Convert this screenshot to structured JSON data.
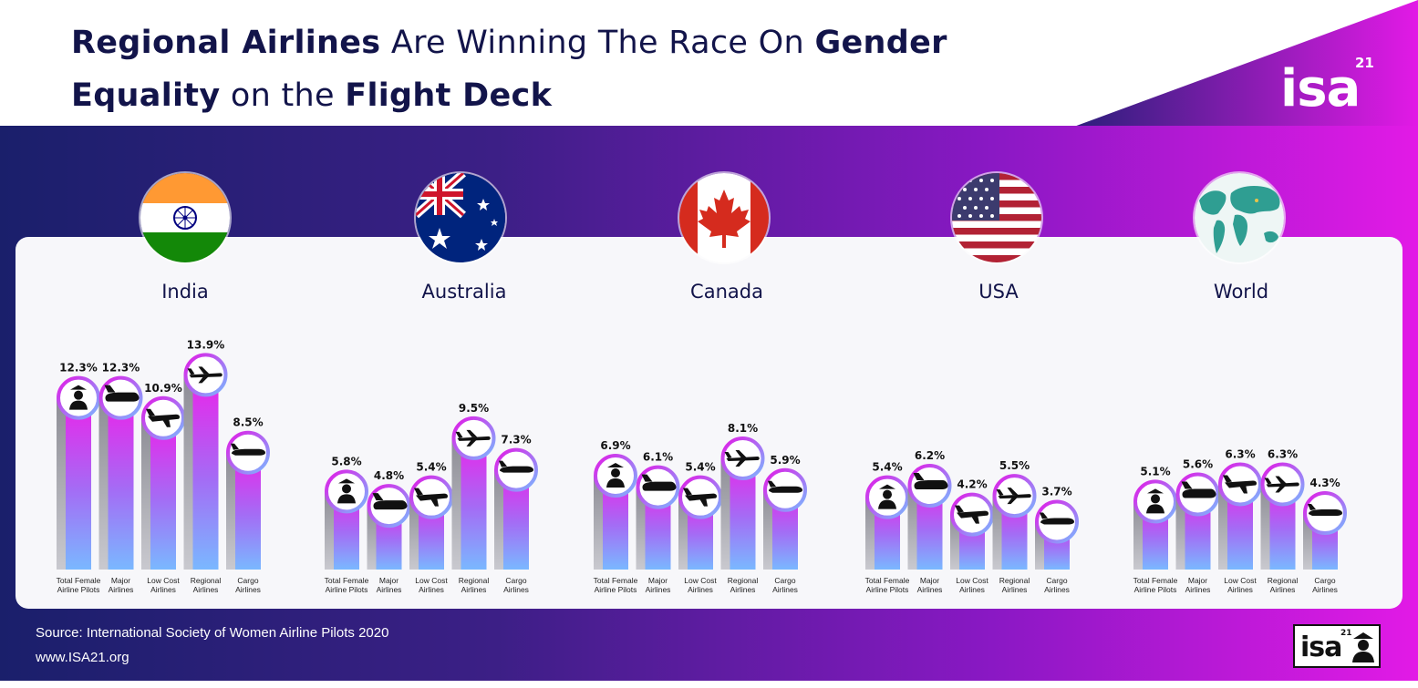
{
  "header": {
    "title_parts": [
      {
        "text": "Regional Airlines",
        "bold": true
      },
      {
        "text": " Are Winning The Race On ",
        "bold": false
      },
      {
        "text": "Gender Equality",
        "bold": true
      },
      {
        "text": " on the ",
        "bold": false
      },
      {
        "text": "Flight Deck",
        "bold": true
      }
    ],
    "logo_text": "isa",
    "logo_superscript": "21"
  },
  "footer": {
    "source": "Source: International Society of Women Airline Pilots 2020",
    "url": "www.ISA21.org",
    "logo_text": "isa",
    "logo_superscript": "21"
  },
  "colors": {
    "band_left": "#1a1f6b",
    "band_right": "#e21ae6",
    "bar_top": "#f01ee9",
    "bar_bottom": "#7ab8ff",
    "title": "#12144a"
  },
  "chart_data": {
    "type": "bar",
    "categories": [
      "Total Female Airline Pilots",
      "Major Airlines",
      "Low Cost Airlines",
      "Regional Airlines",
      "Cargo Airlines"
    ],
    "category_icons": [
      "pilot-icon",
      "major-airliner-icon",
      "low-cost-airliner-icon",
      "regional-airliner-icon",
      "cargo-airliner-icon"
    ],
    "value_suffix": "%",
    "groups": [
      {
        "name": "India",
        "flag": "india-flag",
        "values": [
          12.3,
          12.3,
          10.9,
          13.9,
          8.5
        ]
      },
      {
        "name": "Australia",
        "flag": "australia-flag",
        "values": [
          5.8,
          4.8,
          5.4,
          9.5,
          7.3
        ]
      },
      {
        "name": "Canada",
        "flag": "canada-flag",
        "values": [
          6.9,
          6.1,
          5.4,
          8.1,
          5.9
        ]
      },
      {
        "name": "USA",
        "flag": "usa-flag",
        "values": [
          5.4,
          6.2,
          4.2,
          5.5,
          3.7
        ]
      },
      {
        "name": "World",
        "flag": "world-map",
        "values": [
          5.1,
          5.6,
          6.3,
          6.3,
          4.3
        ]
      }
    ]
  }
}
